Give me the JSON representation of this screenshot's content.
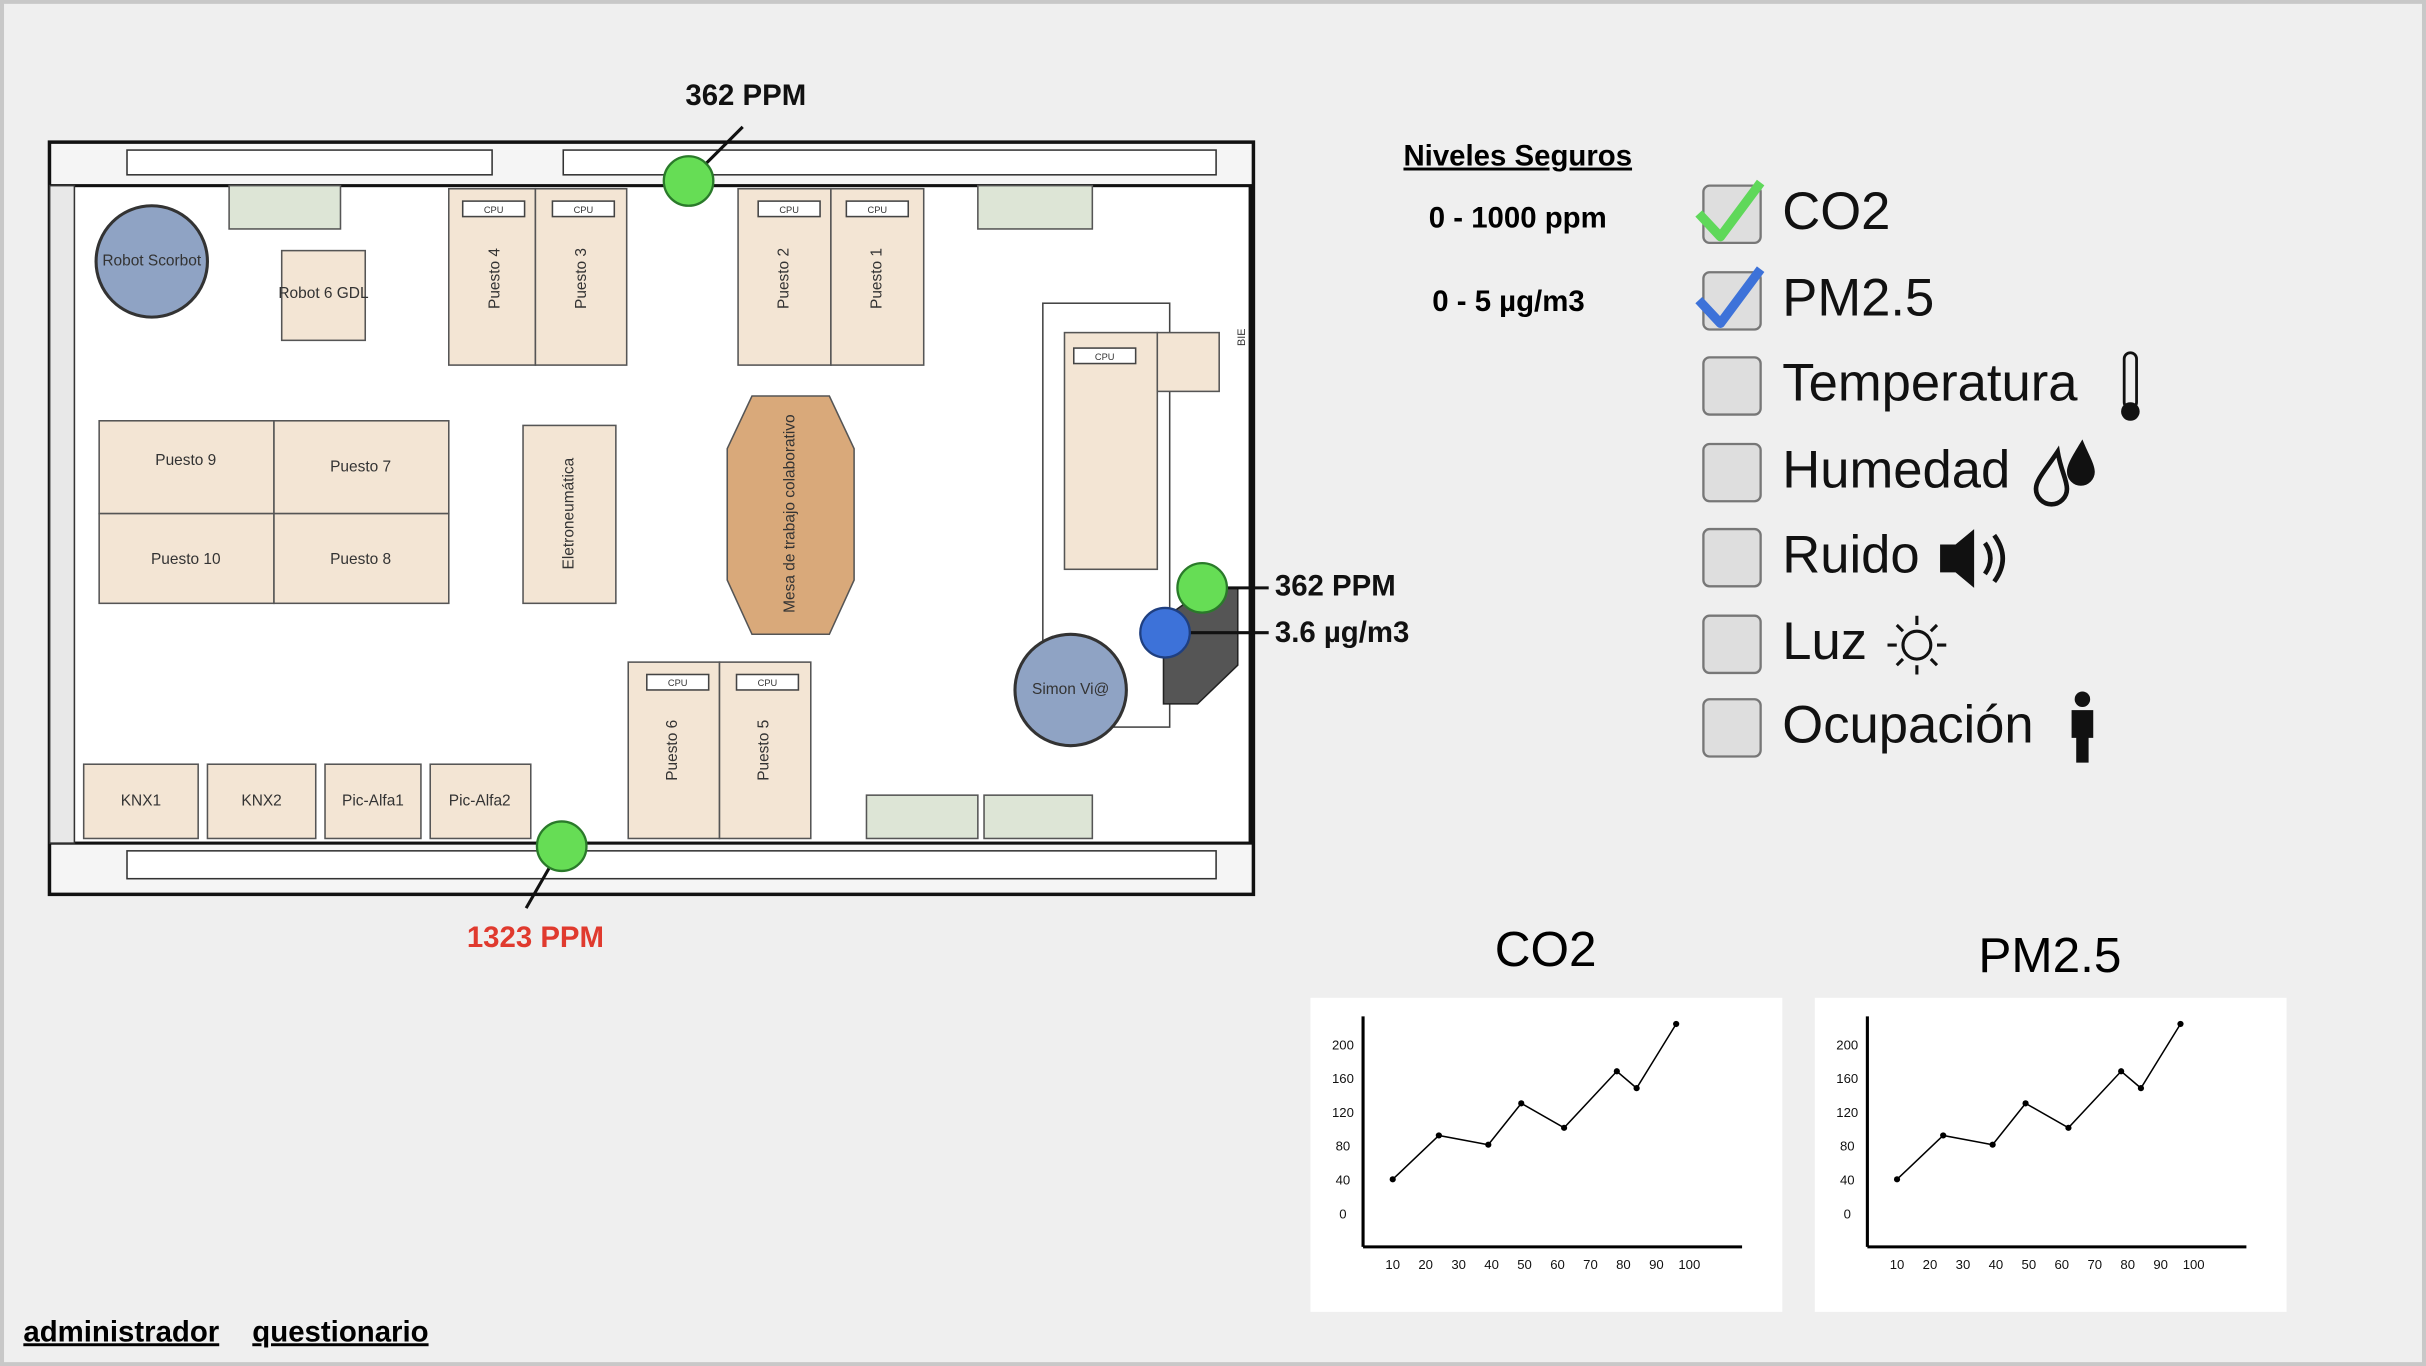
{
  "readings": {
    "top": "362 PPM",
    "right_co2": "362 PPM",
    "right_pm": "3.6 µg/m3",
    "bottom": "1323 PPM"
  },
  "safe_levels": {
    "title": "Niveles Seguros",
    "co2": "0 - 1000 ppm",
    "pm25": "0 - 5 µg/m3"
  },
  "options": [
    {
      "label": "CO2",
      "checked": true,
      "check_color": "#5fd85a"
    },
    {
      "label": "PM2.5",
      "checked": true,
      "check_color": "#3d72d9"
    },
    {
      "label": "Temperatura",
      "checked": false
    },
    {
      "label": "Humedad",
      "checked": false
    },
    {
      "label": "Ruido",
      "checked": false
    },
    {
      "label": "Luz",
      "checked": false
    },
    {
      "label": "Ocupación",
      "checked": false
    }
  ],
  "floor_plan": {
    "labels": [
      "Robot Scorbot",
      "Robot 6 GDL",
      "Puesto 4",
      "Puesto 3",
      "Puesto 2",
      "Puesto 1",
      "Puesto 9",
      "Puesto 7",
      "Puesto 10",
      "Puesto 8",
      "Eletroneumática",
      "Mesa de trabajo colaborativo",
      "Simon Vi@",
      "Puesto 6",
      "Puesto 5",
      "KNX1",
      "KNX2",
      "Pic-Alfa1",
      "Pic-Alfa2",
      "CPU",
      "BIE"
    ]
  },
  "charts": [
    {
      "type": "line",
      "title": "CO2",
      "x": [
        10,
        24,
        39,
        49,
        62,
        78,
        84,
        96
      ],
      "values": [
        42,
        94,
        83,
        132,
        103,
        170,
        150,
        226
      ],
      "xlim": [
        1,
        116
      ],
      "ylim": [
        -38,
        235
      ],
      "xticks": [
        10,
        20,
        30,
        40,
        50,
        60,
        70,
        80,
        90,
        100
      ],
      "yticks": [
        0,
        40,
        80,
        120,
        160,
        200
      ],
      "color": "#000000"
    },
    {
      "type": "line",
      "title": "PM2.5",
      "x": [
        10,
        24,
        39,
        49,
        62,
        78,
        84,
        96
      ],
      "values": [
        42,
        94,
        83,
        132,
        103,
        170,
        150,
        226
      ],
      "xlim": [
        1,
        116
      ],
      "ylim": [
        -38,
        235
      ],
      "xticks": [
        10,
        20,
        30,
        40,
        50,
        60,
        70,
        80,
        90,
        100
      ],
      "yticks": [
        0,
        40,
        80,
        120,
        160,
        200
      ],
      "color": "#000000"
    }
  ],
  "links": [
    "administrador",
    "questionario"
  ]
}
